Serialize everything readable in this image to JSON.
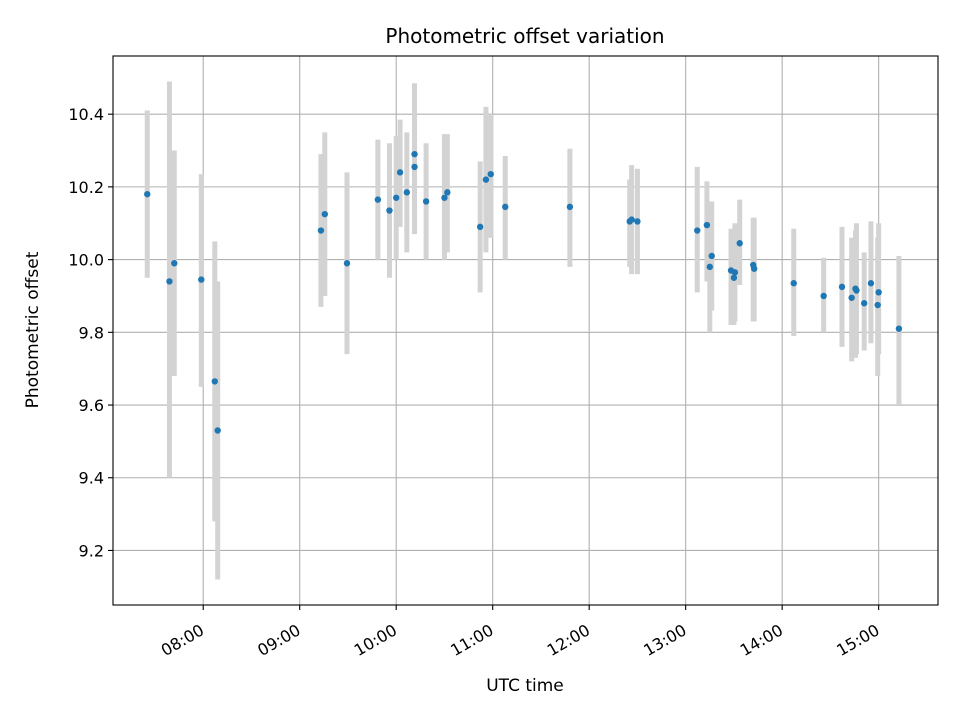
{
  "chart_data": {
    "type": "scatter",
    "title": "Photometric offset variation",
    "xlabel": "UTC time",
    "ylabel": "Photometric offset",
    "x_tick_labels": [
      "08:00",
      "09:00",
      "10:00",
      "11:00",
      "12:00",
      "13:00",
      "14:00",
      "15:00"
    ],
    "x_tick_hours": [
      8,
      9,
      10,
      11,
      12,
      13,
      14,
      15
    ],
    "y_tick_labels": [
      "9.2",
      "9.4",
      "9.6",
      "9.8",
      "10.0",
      "10.2",
      "10.4"
    ],
    "y_tick_values": [
      9.2,
      9.4,
      9.6,
      9.8,
      10.0,
      10.2,
      10.4
    ],
    "xlim": [
      7.065,
      15.615
    ],
    "ylim": [
      9.05,
      10.56
    ],
    "grid": true,
    "series": [
      {
        "marker_color": "#1f77b4",
        "errorbar_color": "#d3d3d3",
        "x": [
          7.42,
          7.65,
          7.7,
          7.98,
          8.12,
          8.15,
          9.22,
          9.26,
          9.49,
          9.81,
          9.93,
          10.0,
          10.04,
          10.11,
          10.19,
          10.19,
          10.31,
          10.5,
          10.53,
          10.87,
          10.93,
          10.98,
          11.13,
          11.8,
          12.42,
          12.44,
          12.5,
          13.12,
          13.22,
          13.25,
          13.27,
          13.47,
          13.5,
          13.51,
          13.56,
          13.7,
          13.71,
          14.12,
          14.43,
          14.62,
          14.72,
          14.76,
          14.77,
          14.85,
          14.92,
          14.99,
          15.0,
          15.21
        ],
        "y": [
          10.18,
          9.94,
          9.99,
          9.945,
          9.665,
          9.53,
          10.08,
          10.125,
          9.99,
          10.165,
          10.135,
          10.17,
          10.24,
          10.185,
          10.29,
          10.255,
          10.16,
          10.17,
          10.185,
          10.09,
          10.22,
          10.235,
          10.145,
          10.145,
          10.105,
          10.11,
          10.105,
          10.08,
          10.095,
          9.98,
          10.01,
          9.97,
          9.95,
          9.965,
          10.045,
          9.985,
          9.975,
          9.935,
          9.9,
          9.925,
          9.895,
          9.92,
          9.915,
          9.88,
          9.935,
          9.875,
          9.91,
          9.81
        ],
        "y_low": [
          9.95,
          9.4,
          9.68,
          9.65,
          9.28,
          9.12,
          9.87,
          9.9,
          9.74,
          10.0,
          9.95,
          10.0,
          10.09,
          10.02,
          10.07,
          10.12,
          10.0,
          10.0,
          10.02,
          9.91,
          10.02,
          10.06,
          10.0,
          9.98,
          9.98,
          9.96,
          9.96,
          9.91,
          9.94,
          9.8,
          9.86,
          9.82,
          9.82,
          9.83,
          9.93,
          9.83,
          9.83,
          9.79,
          9.8,
          9.76,
          9.72,
          9.73,
          9.74,
          9.75,
          9.77,
          9.68,
          9.74,
          9.6
        ],
        "y_high": [
          10.41,
          10.49,
          10.3,
          10.235,
          10.05,
          9.94,
          10.29,
          10.35,
          10.24,
          10.33,
          10.32,
          10.34,
          10.385,
          10.35,
          10.485,
          10.4,
          10.32,
          10.345,
          10.345,
          10.27,
          10.42,
          10.4,
          10.285,
          10.305,
          10.22,
          10.26,
          10.25,
          10.255,
          10.215,
          10.15,
          10.16,
          10.085,
          10.07,
          10.1,
          10.165,
          10.115,
          10.115,
          10.085,
          10.005,
          10.09,
          10.06,
          10.08,
          10.1,
          10.02,
          10.105,
          10.06,
          10.1,
          10.01
        ]
      }
    ]
  }
}
